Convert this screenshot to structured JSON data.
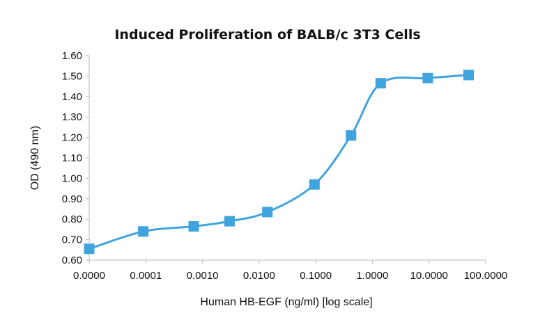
{
  "chart_data": {
    "type": "line",
    "title": "Induced Proliferation of BALB/c 3T3 Cells",
    "xlabel": "Human HB-EGF (ng/ml) [log scale]",
    "ylabel": "OD (490 nm)",
    "x_tick_labels": [
      "0.0000",
      "0.0001",
      "0.0010",
      "0.0100",
      "0.1000",
      "1.0000",
      "10.0000",
      "100.0000"
    ],
    "y_tick_labels": [
      "0.60",
      "0.70",
      "0.80",
      "0.90",
      "1.00",
      "1.10",
      "1.20",
      "1.30",
      "1.40",
      "1.50",
      "1.60"
    ],
    "ylim": [
      0.6,
      1.6
    ],
    "grid": false,
    "x_scale": "log",
    "series": [
      {
        "color": "#3fa4dd",
        "marker": "square",
        "smooth": true,
        "points": [
          {
            "x": 0,
            "y": 0.655
          },
          {
            "x": 9e-05,
            "y": 0.74
          },
          {
            "x": 0.0007,
            "y": 0.765
          },
          {
            "x": 0.003,
            "y": 0.79
          },
          {
            "x": 0.014,
            "y": 0.835
          },
          {
            "x": 0.095,
            "y": 0.97
          },
          {
            "x": 0.42,
            "y": 1.21
          },
          {
            "x": 1.4,
            "y": 1.465
          },
          {
            "x": 9.5,
            "y": 1.49
          },
          {
            "x": 50,
            "y": 1.505
          }
        ]
      }
    ]
  }
}
